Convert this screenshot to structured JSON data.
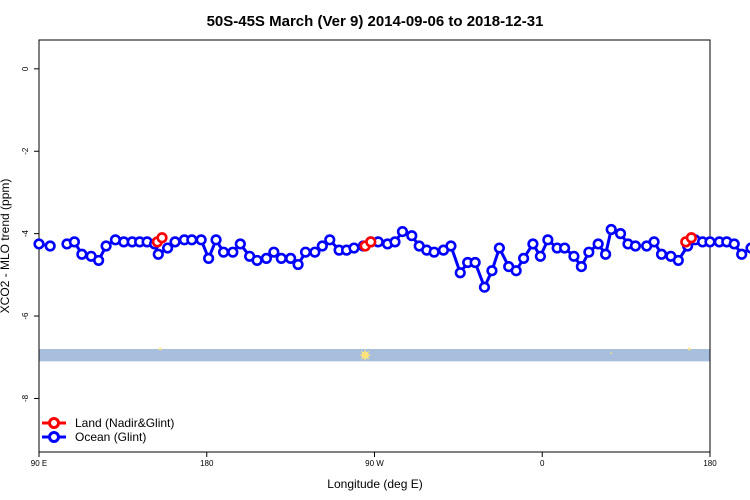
{
  "chart_data": {
    "type": "line",
    "title": "50S-45S March (Ver 9)   2014-09-06 to 2018-12-31",
    "xlabel": "Longitude (deg E)",
    "ylabel": "XCO2 - MLO trend (ppm)",
    "xlim": [
      90,
      450
    ],
    "ylim": [
      -9.3,
      0.7
    ],
    "x_ticks": [
      {
        "value": 90,
        "label": "90 E"
      },
      {
        "value": 180,
        "label": "180"
      },
      {
        "value": 270,
        "label": "90 W"
      },
      {
        "value": 360,
        "label": "0"
      },
      {
        "value": 450,
        "label": "180"
      }
    ],
    "y_ticks": [
      0,
      -2,
      -4,
      -6,
      -8
    ],
    "y_tick_labels": [
      "0",
      "-2",
      "-4",
      "-6",
      "-8"
    ],
    "legend_position": "bottom-left",
    "grid": false,
    "series": [
      {
        "name": "Land (Nadir&Glint)",
        "color": "#ff0000",
        "segments": [
          [
            [
              153.5,
              -4.2
            ],
            [
              156,
              -4.1
            ]
          ],
          [
            [
              265,
              -4.3
            ],
            [
              268,
              -4.2
            ]
          ],
          [
            [
              437,
              -4.2
            ],
            [
              440,
              -4.1
            ]
          ]
        ]
      },
      {
        "name": "Ocean (Glint)",
        "color": "#0000ff",
        "segments": [
          [
            [
              90,
              -4.25
            ],
            [
              96,
              -4.3
            ]
          ],
          [
            [
              105,
              -4.25
            ],
            [
              109,
              -4.2
            ],
            [
              113,
              -4.5
            ],
            [
              118,
              -4.55
            ],
            [
              122,
              -4.65
            ],
            [
              126,
              -4.3
            ],
            [
              131,
              -4.15
            ],
            [
              135.5,
              -4.2
            ],
            [
              140,
              -4.2
            ],
            [
              144,
              -4.2
            ],
            [
              148,
              -4.2
            ],
            [
              152,
              -4.25
            ],
            [
              154,
              -4.5
            ],
            [
              159,
              -4.35
            ],
            [
              163,
              -4.2
            ],
            [
              168,
              -4.15
            ],
            [
              172,
              -4.15
            ],
            [
              177,
              -4.15
            ],
            [
              181,
              -4.6
            ],
            [
              185,
              -4.15
            ],
            [
              189,
              -4.45
            ],
            [
              194,
              -4.45
            ],
            [
              198,
              -4.25
            ],
            [
              203,
              -4.55
            ],
            [
              207,
              -4.65
            ],
            [
              212,
              -4.6
            ],
            [
              216,
              -4.45
            ],
            [
              220,
              -4.6
            ],
            [
              225,
              -4.6
            ],
            [
              229,
              -4.75
            ],
            [
              233,
              -4.45
            ],
            [
              238,
              -4.45
            ],
            [
              242,
              -4.3
            ],
            [
              246,
              -4.15
            ],
            [
              251,
              -4.4
            ],
            [
              255,
              -4.4
            ],
            [
              259,
              -4.35
            ],
            [
              264,
              -4.3
            ],
            [
              268,
              -4.2
            ],
            [
              272,
              -4.2
            ],
            [
              277,
              -4.25
            ],
            [
              281,
              -4.2
            ],
            [
              285,
              -3.95
            ],
            [
              290,
              -4.05
            ],
            [
              294,
              -4.3
            ],
            [
              298,
              -4.4
            ],
            [
              302,
              -4.45
            ],
            [
              307,
              -4.4
            ],
            [
              311,
              -4.3
            ],
            [
              316,
              -4.95
            ],
            [
              320,
              -4.7
            ],
            [
              324,
              -4.7
            ],
            [
              329,
              -5.3
            ],
            [
              333,
              -4.9
            ],
            [
              337,
              -4.35
            ],
            [
              342,
              -4.8
            ],
            [
              346,
              -4.9
            ],
            [
              350,
              -4.6
            ],
            [
              355,
              -4.25
            ],
            [
              359,
              -4.55
            ],
            [
              363,
              -4.15
            ],
            [
              368,
              -4.35
            ],
            [
              372,
              -4.35
            ],
            [
              377,
              -4.55
            ],
            [
              381,
              -4.8
            ],
            [
              385,
              -4.45
            ],
            [
              390,
              -4.25
            ],
            [
              394,
              -4.5
            ],
            [
              397,
              -3.9
            ],
            [
              402,
              -4.0
            ],
            [
              406,
              -4.25
            ],
            [
              410,
              -4.3
            ]
          ],
          [
            [
              416,
              -4.3
            ],
            [
              420,
              -4.2
            ],
            [
              424,
              -4.5
            ],
            [
              429,
              -4.55
            ],
            [
              433,
              -4.65
            ],
            [
              438,
              -4.3
            ],
            [
              442,
              -4.15
            ],
            [
              446,
              -4.2
            ],
            [
              450,
              -4.2
            ],
            [
              455,
              -4.2
            ],
            [
              459,
              -4.2
            ],
            [
              463,
              -4.25
            ],
            [
              467,
              -4.5
            ],
            [
              472,
              -4.35
            ],
            [
              476,
              -4.2
            ]
          ]
        ]
      }
    ],
    "band": {
      "y_range": [
        -6.8,
        -7.1
      ],
      "color": "#a7bfdd"
    },
    "markers": {
      "color": "#fde47a",
      "points": [
        {
          "x": 155,
          "y": -6.8,
          "size": 2
        },
        {
          "x": 265,
          "y": -6.95,
          "size": 6
        },
        {
          "x": 397,
          "y": -6.9,
          "size": 1.2
        },
        {
          "x": 439,
          "y": -6.8,
          "size": 2
        }
      ]
    }
  }
}
